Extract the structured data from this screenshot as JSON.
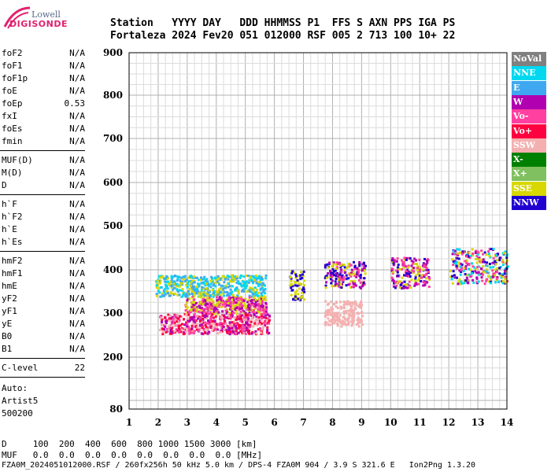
{
  "logo": {
    "brand": "Lowell",
    "name": "DIGISONDE"
  },
  "header": {
    "labels": "Station   YYYY DAY   DDD HHMMSS P1  FFS S AXN PPS IGA PS",
    "values": "Fortaleza 2024 Fev20 051 012000 RSF 005 2 713 100 10+ 22"
  },
  "params": {
    "group1": [
      {
        "name": "foF2",
        "value": "N/A"
      },
      {
        "name": "foF1",
        "value": "N/A"
      },
      {
        "name": "foF1p",
        "value": "N/A"
      },
      {
        "name": "foE",
        "value": "N/A"
      },
      {
        "name": "foEp",
        "value": "0.53"
      },
      {
        "name": "fxI",
        "value": "N/A"
      },
      {
        "name": "foEs",
        "value": "N/A"
      },
      {
        "name": "fmin",
        "value": "N/A"
      }
    ],
    "group2": [
      {
        "name": "MUF(D)",
        "value": "N/A"
      },
      {
        "name": "M(D)",
        "value": "N/A"
      },
      {
        "name": "D",
        "value": "N/A"
      }
    ],
    "group3": [
      {
        "name": "h`F",
        "value": "N/A"
      },
      {
        "name": "h`F2",
        "value": "N/A"
      },
      {
        "name": "h`E",
        "value": "N/A"
      },
      {
        "name": "h`Es",
        "value": "N/A"
      }
    ],
    "group4": [
      {
        "name": "hmF2",
        "value": "N/A"
      },
      {
        "name": "hmF1",
        "value": "N/A"
      },
      {
        "name": "hmE",
        "value": "N/A"
      },
      {
        "name": "yF2",
        "value": "N/A"
      },
      {
        "name": "yF1",
        "value": "N/A"
      },
      {
        "name": "yE",
        "value": "N/A"
      },
      {
        "name": "B0",
        "value": "N/A"
      },
      {
        "name": "B1",
        "value": "N/A"
      }
    ],
    "clevel": {
      "name": "C-level",
      "value": "22"
    },
    "auto": [
      "Auto:",
      "Artist5",
      "500200"
    ]
  },
  "legend": [
    {
      "label": "NoVal",
      "color": "#808080"
    },
    {
      "label": "NNE",
      "color": "#00d8f0"
    },
    {
      "label": "E",
      "color": "#40a8f0"
    },
    {
      "label": "W",
      "color": "#b000b0"
    },
    {
      "label": "Vo-",
      "color": "#ff40a0"
    },
    {
      "label": "Vo+",
      "color": "#ff0040"
    },
    {
      "label": "SSW",
      "color": "#f4b0b0"
    },
    {
      "label": "X-",
      "color": "#008000"
    },
    {
      "label": "X+",
      "color": "#80c060"
    },
    {
      "label": "SSE",
      "color": "#d8d800"
    },
    {
      "label": "NNW",
      "color": "#2000d0"
    }
  ],
  "chart_data": {
    "type": "scatter",
    "x_ticks": [
      "1",
      "2",
      "3",
      "4",
      "5",
      "6",
      "7",
      "8",
      "9",
      "10",
      "11",
      "12",
      "13",
      "14"
    ],
    "y_ticks": [
      "900",
      "800",
      "700",
      "600",
      "500",
      "400",
      "300",
      "200",
      "80"
    ],
    "xlim": [
      1,
      14
    ],
    "y_tick_values": [
      900,
      800,
      700,
      600,
      500,
      400,
      300,
      200,
      80
    ],
    "grid": true,
    "clusters": [
      {
        "x": [
          1.9,
          5.7
        ],
        "y": [
          340,
          390
        ],
        "colors": [
          "#40a8f0",
          "#00d8f0",
          "#d8d800"
        ]
      },
      {
        "x": [
          2.9,
          5.7
        ],
        "y": [
          300,
          340
        ],
        "colors": [
          "#d8d800",
          "#b000b0",
          "#ff40a0"
        ]
      },
      {
        "x": [
          2.0,
          5.8
        ],
        "y": [
          255,
          300
        ],
        "colors": [
          "#f4b0b0",
          "#ff40a0",
          "#b000b0",
          "#ff0040"
        ]
      },
      {
        "x": [
          6.5,
          7.0
        ],
        "y": [
          330,
          400
        ],
        "colors": [
          "#d8d800",
          "#2000d0"
        ]
      },
      {
        "x": [
          7.7,
          9.1
        ],
        "y": [
          360,
          420
        ],
        "colors": [
          "#d8d800",
          "#2000d0",
          "#ff40a0",
          "#b000b0"
        ]
      },
      {
        "x": [
          7.7,
          9.0
        ],
        "y": [
          270,
          330
        ],
        "colors": [
          "#f4b0b0"
        ]
      },
      {
        "x": [
          10.0,
          11.3
        ],
        "y": [
          360,
          430
        ],
        "colors": [
          "#d8d800",
          "#ff40a0",
          "#b000b0",
          "#2000d0"
        ]
      },
      {
        "x": [
          12.0,
          14.0
        ],
        "y": [
          370,
          450
        ],
        "colors": [
          "#d8d800",
          "#ff40a0",
          "#b000b0",
          "#00d8f0",
          "#2000d0"
        ]
      }
    ]
  },
  "footer": {
    "line1": "D     100  200  400  600  800 1000 1500 3000 [km]",
    "line2": "MUF   0.0  0.0  0.0  0.0  0.0  0.0  0.0  0.0 [MHz]",
    "line3": "FZA0M_2024051012000.RSF / 260fx256h 50 kHz 5.0 km / DPS-4 FZA0M 904 / 3.9 S 321.6 E   Ion2Png 1.3.20"
  }
}
